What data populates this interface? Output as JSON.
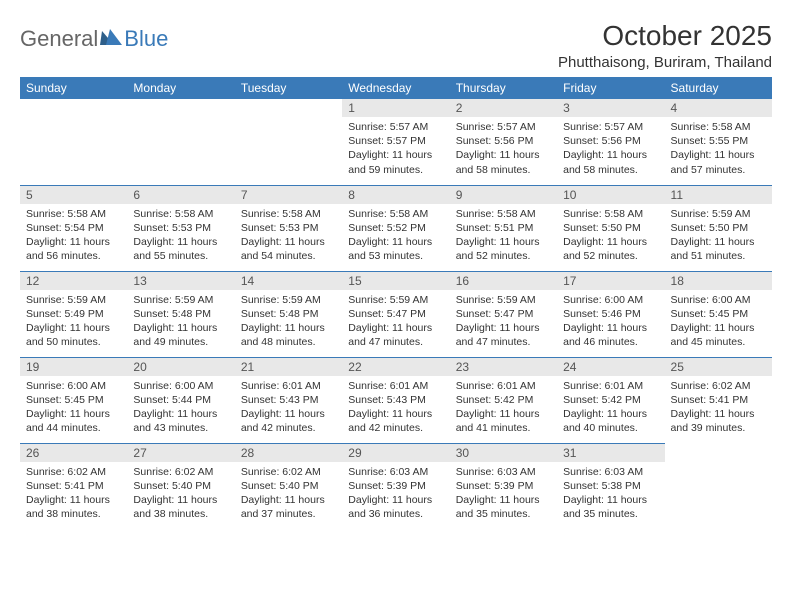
{
  "logo": {
    "text1": "General",
    "text2": "Blue"
  },
  "title": "October 2025",
  "location": "Phutthaisong, Buriram, Thailand",
  "colors": {
    "header_bg": "#3a7ab8",
    "header_text": "#ffffff",
    "daynum_bg": "#e8e8e8",
    "border": "#3a7ab8",
    "logo_gray": "#666666",
    "logo_blue": "#3a7ab8"
  },
  "day_headers": [
    "Sunday",
    "Monday",
    "Tuesday",
    "Wednesday",
    "Thursday",
    "Friday",
    "Saturday"
  ],
  "weeks": [
    [
      {
        "day": "",
        "sunrise": "",
        "sunset": "",
        "daylight": ""
      },
      {
        "day": "",
        "sunrise": "",
        "sunset": "",
        "daylight": ""
      },
      {
        "day": "",
        "sunrise": "",
        "sunset": "",
        "daylight": ""
      },
      {
        "day": "1",
        "sunrise": "Sunrise: 5:57 AM",
        "sunset": "Sunset: 5:57 PM",
        "daylight": "Daylight: 11 hours and 59 minutes."
      },
      {
        "day": "2",
        "sunrise": "Sunrise: 5:57 AM",
        "sunset": "Sunset: 5:56 PM",
        "daylight": "Daylight: 11 hours and 58 minutes."
      },
      {
        "day": "3",
        "sunrise": "Sunrise: 5:57 AM",
        "sunset": "Sunset: 5:56 PM",
        "daylight": "Daylight: 11 hours and 58 minutes."
      },
      {
        "day": "4",
        "sunrise": "Sunrise: 5:58 AM",
        "sunset": "Sunset: 5:55 PM",
        "daylight": "Daylight: 11 hours and 57 minutes."
      }
    ],
    [
      {
        "day": "5",
        "sunrise": "Sunrise: 5:58 AM",
        "sunset": "Sunset: 5:54 PM",
        "daylight": "Daylight: 11 hours and 56 minutes."
      },
      {
        "day": "6",
        "sunrise": "Sunrise: 5:58 AM",
        "sunset": "Sunset: 5:53 PM",
        "daylight": "Daylight: 11 hours and 55 minutes."
      },
      {
        "day": "7",
        "sunrise": "Sunrise: 5:58 AM",
        "sunset": "Sunset: 5:53 PM",
        "daylight": "Daylight: 11 hours and 54 minutes."
      },
      {
        "day": "8",
        "sunrise": "Sunrise: 5:58 AM",
        "sunset": "Sunset: 5:52 PM",
        "daylight": "Daylight: 11 hours and 53 minutes."
      },
      {
        "day": "9",
        "sunrise": "Sunrise: 5:58 AM",
        "sunset": "Sunset: 5:51 PM",
        "daylight": "Daylight: 11 hours and 52 minutes."
      },
      {
        "day": "10",
        "sunrise": "Sunrise: 5:58 AM",
        "sunset": "Sunset: 5:50 PM",
        "daylight": "Daylight: 11 hours and 52 minutes."
      },
      {
        "day": "11",
        "sunrise": "Sunrise: 5:59 AM",
        "sunset": "Sunset: 5:50 PM",
        "daylight": "Daylight: 11 hours and 51 minutes."
      }
    ],
    [
      {
        "day": "12",
        "sunrise": "Sunrise: 5:59 AM",
        "sunset": "Sunset: 5:49 PM",
        "daylight": "Daylight: 11 hours and 50 minutes."
      },
      {
        "day": "13",
        "sunrise": "Sunrise: 5:59 AM",
        "sunset": "Sunset: 5:48 PM",
        "daylight": "Daylight: 11 hours and 49 minutes."
      },
      {
        "day": "14",
        "sunrise": "Sunrise: 5:59 AM",
        "sunset": "Sunset: 5:48 PM",
        "daylight": "Daylight: 11 hours and 48 minutes."
      },
      {
        "day": "15",
        "sunrise": "Sunrise: 5:59 AM",
        "sunset": "Sunset: 5:47 PM",
        "daylight": "Daylight: 11 hours and 47 minutes."
      },
      {
        "day": "16",
        "sunrise": "Sunrise: 5:59 AM",
        "sunset": "Sunset: 5:47 PM",
        "daylight": "Daylight: 11 hours and 47 minutes."
      },
      {
        "day": "17",
        "sunrise": "Sunrise: 6:00 AM",
        "sunset": "Sunset: 5:46 PM",
        "daylight": "Daylight: 11 hours and 46 minutes."
      },
      {
        "day": "18",
        "sunrise": "Sunrise: 6:00 AM",
        "sunset": "Sunset: 5:45 PM",
        "daylight": "Daylight: 11 hours and 45 minutes."
      }
    ],
    [
      {
        "day": "19",
        "sunrise": "Sunrise: 6:00 AM",
        "sunset": "Sunset: 5:45 PM",
        "daylight": "Daylight: 11 hours and 44 minutes."
      },
      {
        "day": "20",
        "sunrise": "Sunrise: 6:00 AM",
        "sunset": "Sunset: 5:44 PM",
        "daylight": "Daylight: 11 hours and 43 minutes."
      },
      {
        "day": "21",
        "sunrise": "Sunrise: 6:01 AM",
        "sunset": "Sunset: 5:43 PM",
        "daylight": "Daylight: 11 hours and 42 minutes."
      },
      {
        "day": "22",
        "sunrise": "Sunrise: 6:01 AM",
        "sunset": "Sunset: 5:43 PM",
        "daylight": "Daylight: 11 hours and 42 minutes."
      },
      {
        "day": "23",
        "sunrise": "Sunrise: 6:01 AM",
        "sunset": "Sunset: 5:42 PM",
        "daylight": "Daylight: 11 hours and 41 minutes."
      },
      {
        "day": "24",
        "sunrise": "Sunrise: 6:01 AM",
        "sunset": "Sunset: 5:42 PM",
        "daylight": "Daylight: 11 hours and 40 minutes."
      },
      {
        "day": "25",
        "sunrise": "Sunrise: 6:02 AM",
        "sunset": "Sunset: 5:41 PM",
        "daylight": "Daylight: 11 hours and 39 minutes."
      }
    ],
    [
      {
        "day": "26",
        "sunrise": "Sunrise: 6:02 AM",
        "sunset": "Sunset: 5:41 PM",
        "daylight": "Daylight: 11 hours and 38 minutes."
      },
      {
        "day": "27",
        "sunrise": "Sunrise: 6:02 AM",
        "sunset": "Sunset: 5:40 PM",
        "daylight": "Daylight: 11 hours and 38 minutes."
      },
      {
        "day": "28",
        "sunrise": "Sunrise: 6:02 AM",
        "sunset": "Sunset: 5:40 PM",
        "daylight": "Daylight: 11 hours and 37 minutes."
      },
      {
        "day": "29",
        "sunrise": "Sunrise: 6:03 AM",
        "sunset": "Sunset: 5:39 PM",
        "daylight": "Daylight: 11 hours and 36 minutes."
      },
      {
        "day": "30",
        "sunrise": "Sunrise: 6:03 AM",
        "sunset": "Sunset: 5:39 PM",
        "daylight": "Daylight: 11 hours and 35 minutes."
      },
      {
        "day": "31",
        "sunrise": "Sunrise: 6:03 AM",
        "sunset": "Sunset: 5:38 PM",
        "daylight": "Daylight: 11 hours and 35 minutes."
      },
      {
        "day": "",
        "sunrise": "",
        "sunset": "",
        "daylight": ""
      }
    ]
  ]
}
